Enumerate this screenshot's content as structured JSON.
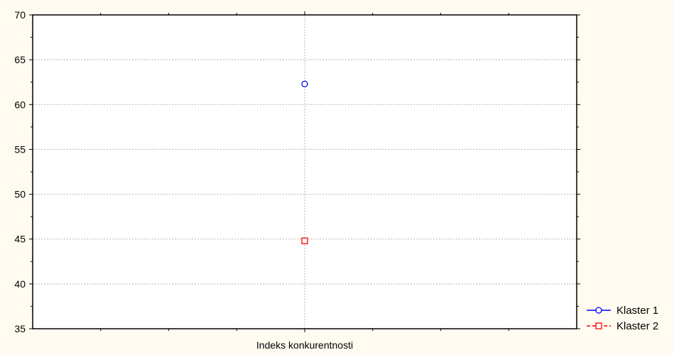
{
  "chart_data": {
    "type": "line",
    "categories": [
      "Indeks konkurentnosti"
    ],
    "series": [
      {
        "name": "Klaster 1",
        "values": [
          62.3
        ],
        "color": "#0000ff",
        "marker": "circle",
        "line_style": "solid"
      },
      {
        "name": "Klaster 2",
        "values": [
          44.8
        ],
        "color": "#ff0000",
        "marker": "square",
        "line_style": "dashed"
      }
    ],
    "title": "",
    "xlabel": "",
    "ylabel": "",
    "ylim": [
      35,
      70
    ],
    "yticks": [
      35,
      40,
      45,
      50,
      55,
      60,
      65,
      70
    ],
    "grid": true,
    "legend_position": "bottom-right",
    "background_color": "#fffbf0",
    "plot_background_color": "#ffffff"
  }
}
